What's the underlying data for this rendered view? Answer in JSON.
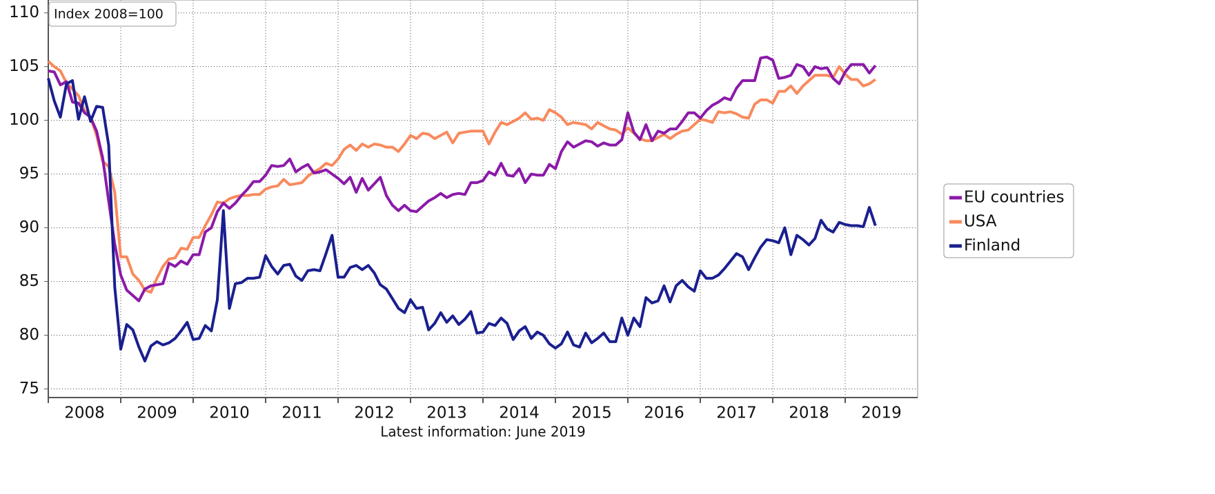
{
  "chart_data": {
    "type": "line",
    "subtitle": "Index 2008=100",
    "footnote": "Latest information: June 2019",
    "x": [
      2008,
      2008.083,
      2008.167,
      2008.25,
      2008.333,
      2008.417,
      2008.5,
      2008.583,
      2008.667,
      2008.75,
      2008.833,
      2008.917,
      2009,
      2009.083,
      2009.167,
      2009.25,
      2009.333,
      2009.417,
      2009.5,
      2009.583,
      2009.667,
      2009.75,
      2009.833,
      2009.917,
      2010,
      2010.083,
      2010.167,
      2010.25,
      2010.333,
      2010.417,
      2010.5,
      2010.583,
      2010.667,
      2010.75,
      2010.833,
      2010.917,
      2011,
      2011.083,
      2011.167,
      2011.25,
      2011.333,
      2011.417,
      2011.5,
      2011.583,
      2011.667,
      2011.75,
      2011.833,
      2011.917,
      2012,
      2012.083,
      2012.167,
      2012.25,
      2012.333,
      2012.417,
      2012.5,
      2012.583,
      2012.667,
      2012.75,
      2012.833,
      2012.917,
      2013,
      2013.083,
      2013.167,
      2013.25,
      2013.333,
      2013.417,
      2013.5,
      2013.583,
      2013.667,
      2013.75,
      2013.833,
      2013.917,
      2014,
      2014.083,
      2014.167,
      2014.25,
      2014.333,
      2014.417,
      2014.5,
      2014.583,
      2014.667,
      2014.75,
      2014.833,
      2014.917,
      2015,
      2015.083,
      2015.167,
      2015.25,
      2015.333,
      2015.417,
      2015.5,
      2015.583,
      2015.667,
      2015.75,
      2015.833,
      2015.917,
      2016,
      2016.083,
      2016.167,
      2016.25,
      2016.333,
      2016.417,
      2016.5,
      2016.583,
      2016.667,
      2016.75,
      2016.833,
      2016.917,
      2017,
      2017.083,
      2017.167,
      2017.25,
      2017.333,
      2017.417,
      2017.5,
      2017.583,
      2017.667,
      2017.75,
      2017.833,
      2017.917,
      2018,
      2018.083,
      2018.167,
      2018.25,
      2018.333,
      2018.417,
      2018.5,
      2018.583,
      2018.667,
      2018.75,
      2018.833,
      2018.917,
      2019,
      2019.083,
      2019.167,
      2019.25,
      2019.333,
      2019.417
    ],
    "series": [
      {
        "name": "EU countries",
        "color": "#8b1aa8",
        "values": [
          104.6,
          104.5,
          103.3,
          103.6,
          101.7,
          101.6,
          100.7,
          100.3,
          99.0,
          96.5,
          92.5,
          88.5,
          85.6,
          84.2,
          83.7,
          83.2,
          84.3,
          84.6,
          84.7,
          84.8,
          86.7,
          86.4,
          86.9,
          86.6,
          87.5,
          87.5,
          89.6,
          90.0,
          91.5,
          92.3,
          91.8,
          92.3,
          93.0,
          93.6,
          94.3,
          94.3,
          94.9,
          95.8,
          95.7,
          95.8,
          96.4,
          95.2,
          95.6,
          95.9,
          95.1,
          95.2,
          95.4,
          95.0,
          94.6,
          94.1,
          94.7,
          93.3,
          94.6,
          93.5,
          94.1,
          94.7,
          93.0,
          92.1,
          91.6,
          92.1,
          91.6,
          91.5,
          92.0,
          92.5,
          92.8,
          93.2,
          92.8,
          93.1,
          93.2,
          93.1,
          94.2,
          94.2,
          94.4,
          95.2,
          94.9,
          96.0,
          94.9,
          94.8,
          95.5,
          94.2,
          95.0,
          94.9,
          94.9,
          95.9,
          95.5,
          97.1,
          98.0,
          97.5,
          97.8,
          98.1,
          98.0,
          97.6,
          97.9,
          97.7,
          97.7,
          98.2,
          100.7,
          98.9,
          98.2,
          99.6,
          98.1,
          99.0,
          98.8,
          99.2,
          99.2,
          99.9,
          100.7,
          100.7,
          100.2,
          100.9,
          101.4,
          101.7,
          102.1,
          101.9,
          103.0,
          103.7,
          103.7,
          103.7,
          105.8,
          105.9,
          105.6,
          103.9,
          104.0,
          104.2,
          105.2,
          105.0,
          104.2,
          105.0,
          104.8,
          104.9,
          103.9,
          103.4,
          104.5,
          105.2,
          105.2,
          105.2,
          104.4,
          105.1
        ]
      },
      {
        "name": "USA",
        "color": "#f88a5e",
        "values": [
          105.5,
          105.0,
          104.6,
          103.5,
          102.9,
          102.3,
          100.9,
          100.3,
          98.6,
          96.2,
          95.7,
          93.3,
          87.3,
          87.3,
          85.7,
          85.1,
          84.2,
          84.0,
          85.3,
          86.4,
          87.1,
          87.2,
          88.1,
          88.0,
          89.1,
          89.1,
          90.2,
          91.2,
          92.4,
          92.3,
          92.7,
          92.9,
          93.0,
          93.0,
          93.1,
          93.1,
          93.6,
          93.8,
          93.9,
          94.5,
          94.0,
          94.1,
          94.2,
          94.8,
          95.2,
          95.5,
          96.0,
          95.8,
          96.4,
          97.3,
          97.7,
          97.2,
          97.8,
          97.5,
          97.8,
          97.7,
          97.5,
          97.5,
          97.1,
          97.8,
          98.6,
          98.3,
          98.8,
          98.7,
          98.3,
          98.6,
          98.9,
          97.9,
          98.8,
          98.9,
          99.0,
          99.0,
          99.0,
          97.8,
          98.9,
          99.8,
          99.6,
          99.9,
          100.2,
          100.7,
          100.1,
          100.2,
          100.0,
          101.0,
          100.7,
          100.3,
          99.6,
          99.8,
          99.7,
          99.6,
          99.2,
          99.8,
          99.5,
          99.2,
          99.1,
          98.7,
          99.3,
          98.8,
          98.3,
          98.1,
          98.1,
          98.4,
          98.7,
          98.3,
          98.7,
          99.0,
          99.1,
          99.6,
          100.1,
          100.0,
          99.8,
          100.8,
          100.7,
          100.8,
          100.6,
          100.3,
          100.2,
          101.5,
          101.9,
          101.9,
          101.6,
          102.7,
          102.7,
          103.2,
          102.5,
          103.2,
          103.7,
          104.2,
          104.2,
          104.2,
          104.0,
          105.0,
          104.3,
          103.8,
          103.8,
          103.2,
          103.4,
          103.8
        ]
      },
      {
        "name": "Finland",
        "color": "#1a1f8f",
        "values": [
          103.9,
          101.8,
          100.3,
          103.4,
          103.7,
          100.1,
          102.2,
          99.9,
          101.3,
          101.2,
          97.7,
          84.5,
          78.7,
          81.0,
          80.5,
          78.9,
          77.6,
          79.0,
          79.4,
          79.1,
          79.3,
          79.7,
          80.4,
          81.2,
          79.6,
          79.7,
          80.9,
          80.4,
          83.3,
          91.6,
          82.5,
          84.8,
          84.9,
          85.3,
          85.3,
          85.4,
          87.4,
          86.4,
          85.7,
          86.5,
          86.6,
          85.5,
          85.1,
          86.0,
          86.1,
          86.0,
          87.6,
          89.3,
          85.4,
          85.4,
          86.3,
          86.5,
          86.1,
          86.5,
          85.8,
          84.7,
          84.3,
          83.4,
          82.5,
          82.1,
          83.3,
          82.5,
          82.6,
          80.5,
          81.1,
          82.1,
          81.2,
          81.8,
          81.0,
          81.5,
          82.2,
          80.2,
          80.3,
          81.1,
          80.9,
          81.6,
          81.1,
          79.6,
          80.4,
          80.8,
          79.7,
          80.3,
          80.0,
          79.2,
          78.8,
          79.2,
          80.3,
          79.1,
          78.9,
          80.2,
          79.3,
          79.7,
          80.2,
          79.4,
          79.4,
          81.6,
          80.0,
          81.6,
          80.8,
          83.5,
          83.0,
          83.2,
          84.6,
          83.1,
          84.6,
          85.1,
          84.5,
          84.1,
          86.0,
          85.3,
          85.3,
          85.6,
          86.2,
          86.9,
          87.6,
          87.3,
          86.1,
          87.2,
          88.2,
          88.9,
          88.8,
          88.6,
          90.0,
          87.5,
          89.3,
          88.9,
          88.4,
          89.0,
          90.7,
          89.9,
          89.6,
          90.5,
          90.3,
          90.2,
          90.2,
          90.1,
          91.9,
          90.2
        ]
      }
    ],
    "xlim": [
      2008,
      2020
    ],
    "xticks": [
      2008,
      2009,
      2010,
      2011,
      2012,
      2013,
      2014,
      2015,
      2016,
      2017,
      2018,
      2019
    ],
    "ylim": [
      74.2,
      111.2
    ],
    "yticks": [
      75,
      80,
      85,
      90,
      95,
      100,
      105,
      110
    ],
    "grid": true,
    "legend": "right"
  }
}
